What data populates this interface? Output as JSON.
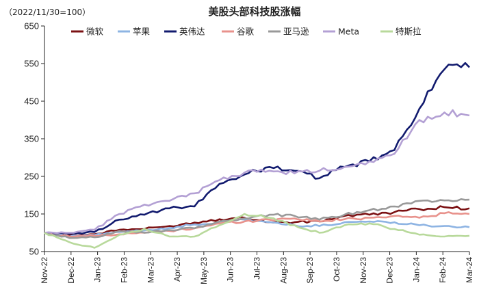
{
  "chart_data": {
    "type": "line",
    "title": "美股头部科技股涨幅",
    "note": "（2022/11/30=100）",
    "xlabel": "",
    "ylabel": "",
    "ylim": [
      50,
      650
    ],
    "yticks": [
      50,
      150,
      250,
      350,
      450,
      550,
      650
    ],
    "xticks": [
      "Nov-22",
      "Dec-22",
      "Jan-23",
      "Feb-23",
      "Mar-23",
      "Apr-23",
      "May-23",
      "Jun-23",
      "Jul-23",
      "Aug-23",
      "Sep-23",
      "Oct-23",
      "Nov-23",
      "Dec-23",
      "Jan-24",
      "Feb-24",
      "Mar-24"
    ],
    "x": [
      "Nov-22",
      "Dec-22",
      "Jan-23",
      "Feb-23",
      "Mar-23",
      "Apr-23",
      "May-23",
      "Jun-23",
      "Jul-23",
      "Aug-23",
      "Sep-23",
      "Oct-23",
      "Nov-23",
      "Dec-23",
      "Jan-24",
      "Feb-24",
      "Mar-24",
      "Mar-24 end"
    ],
    "legend_position": "top",
    "grid": false,
    "series": [
      {
        "name": "微软",
        "color": "#7b1113",
        "values": [
          100,
          93,
          96,
          108,
          110,
          118,
          127,
          136,
          140,
          128,
          128,
          130,
          145,
          148,
          155,
          163,
          168,
          165
        ]
      },
      {
        "name": "苹果",
        "color": "#8eb4e3",
        "values": [
          100,
          90,
          94,
          102,
          106,
          113,
          122,
          127,
          135,
          128,
          120,
          118,
          128,
          130,
          128,
          120,
          118,
          115
        ]
      },
      {
        "name": "英伟达",
        "color": "#111a6e",
        "values": [
          100,
          97,
          102,
          135,
          148,
          165,
          170,
          230,
          255,
          275,
          265,
          245,
          275,
          290,
          320,
          430,
          535,
          540
        ]
      },
      {
        "name": "谷歌",
        "color": "#e8928c",
        "values": [
          100,
          90,
          92,
          96,
          100,
          105,
          112,
          125,
          130,
          135,
          138,
          130,
          136,
          140,
          145,
          140,
          152,
          150
        ]
      },
      {
        "name": "亚马逊",
        "color": "#999999",
        "values": [
          100,
          86,
          88,
          105,
          100,
          107,
          112,
          130,
          138,
          148,
          145,
          135,
          148,
          160,
          170,
          185,
          186,
          188
        ]
      },
      {
        "name": "Meta",
        "color": "#b3a0d4",
        "values": [
          100,
          100,
          108,
          150,
          175,
          185,
          205,
          240,
          260,
          265,
          258,
          265,
          275,
          290,
          310,
          400,
          420,
          412
        ]
      },
      {
        "name": "特斯拉",
        "color": "#b8d99b",
        "values": [
          100,
          75,
          60,
          95,
          110,
          90,
          90,
          120,
          150,
          140,
          120,
          100,
          120,
          125,
          110,
          95,
          90,
          92
        ]
      }
    ]
  }
}
